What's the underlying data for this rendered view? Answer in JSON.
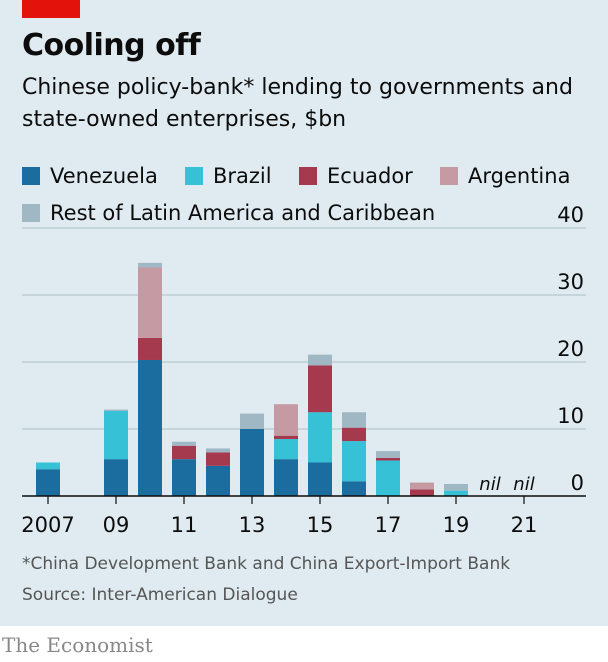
{
  "header": {
    "title": "Cooling off",
    "subtitle": "Chinese policy-bank* lending to governments and state-owned enterprises, $bn"
  },
  "legend": [
    {
      "label": "Venezuela",
      "color": "#1b6da0"
    },
    {
      "label": "Brazil",
      "color": "#36c1d6"
    },
    {
      "label": "Ecuador",
      "color": "#a53a4f"
    },
    {
      "label": "Argentina",
      "color": "#c59aa3"
    },
    {
      "label": "Rest of Latin America and Caribbean",
      "color": "#a0b7c4"
    }
  ],
  "footer": {
    "note": "*China Development Bank and China Export-Import Bank",
    "source": "Source: Inter-American Dialogue"
  },
  "brand": "The Economist",
  "chart_data": {
    "type": "bar",
    "stacked": true,
    "categories": [
      "2007",
      "2008",
      "2009",
      "2010",
      "2011",
      "2012",
      "2013",
      "2014",
      "2015",
      "2016",
      "2017",
      "2018",
      "2019",
      "2020",
      "2021"
    ],
    "x_tick_labels": [
      "2007",
      "09",
      "11",
      "13",
      "15",
      "17",
      "19",
      "21"
    ],
    "nil_labels": [
      "nil",
      "nil"
    ],
    "series": [
      {
        "name": "Venezuela",
        "color": "#1b6da0",
        "values": [
          4.0,
          0,
          5.5,
          20.3,
          5.5,
          4.5,
          10.0,
          5.5,
          5.0,
          2.2,
          0,
          0,
          0,
          0,
          0
        ]
      },
      {
        "name": "Brazil",
        "color": "#36c1d6",
        "values": [
          1.0,
          0,
          7.2,
          0,
          0,
          0,
          0,
          3.0,
          7.5,
          6.0,
          5.3,
          0,
          0.8,
          0,
          0
        ]
      },
      {
        "name": "Ecuador",
        "color": "#a53a4f",
        "values": [
          0,
          0,
          0,
          3.3,
          2.0,
          2.0,
          0,
          0.5,
          7.0,
          2.0,
          0.4,
          1.0,
          0,
          0,
          0
        ]
      },
      {
        "name": "Argentina",
        "color": "#c59aa3",
        "values": [
          0,
          0,
          0,
          10.5,
          0,
          0,
          0,
          4.7,
          0,
          0,
          0,
          1.0,
          0,
          0,
          0
        ]
      },
      {
        "name": "Rest of Latin America and Caribbean",
        "color": "#a0b7c4",
        "values": [
          0,
          0,
          0.2,
          0.7,
          0.6,
          0.6,
          2.3,
          0,
          1.6,
          2.3,
          1.0,
          0,
          1.0,
          0,
          0
        ]
      }
    ],
    "ylim": [
      0,
      40
    ],
    "yticks": [
      0,
      10,
      20,
      30,
      40
    ],
    "grid": true,
    "y_axis_side": "right",
    "xlabel": "",
    "ylabel": ""
  }
}
